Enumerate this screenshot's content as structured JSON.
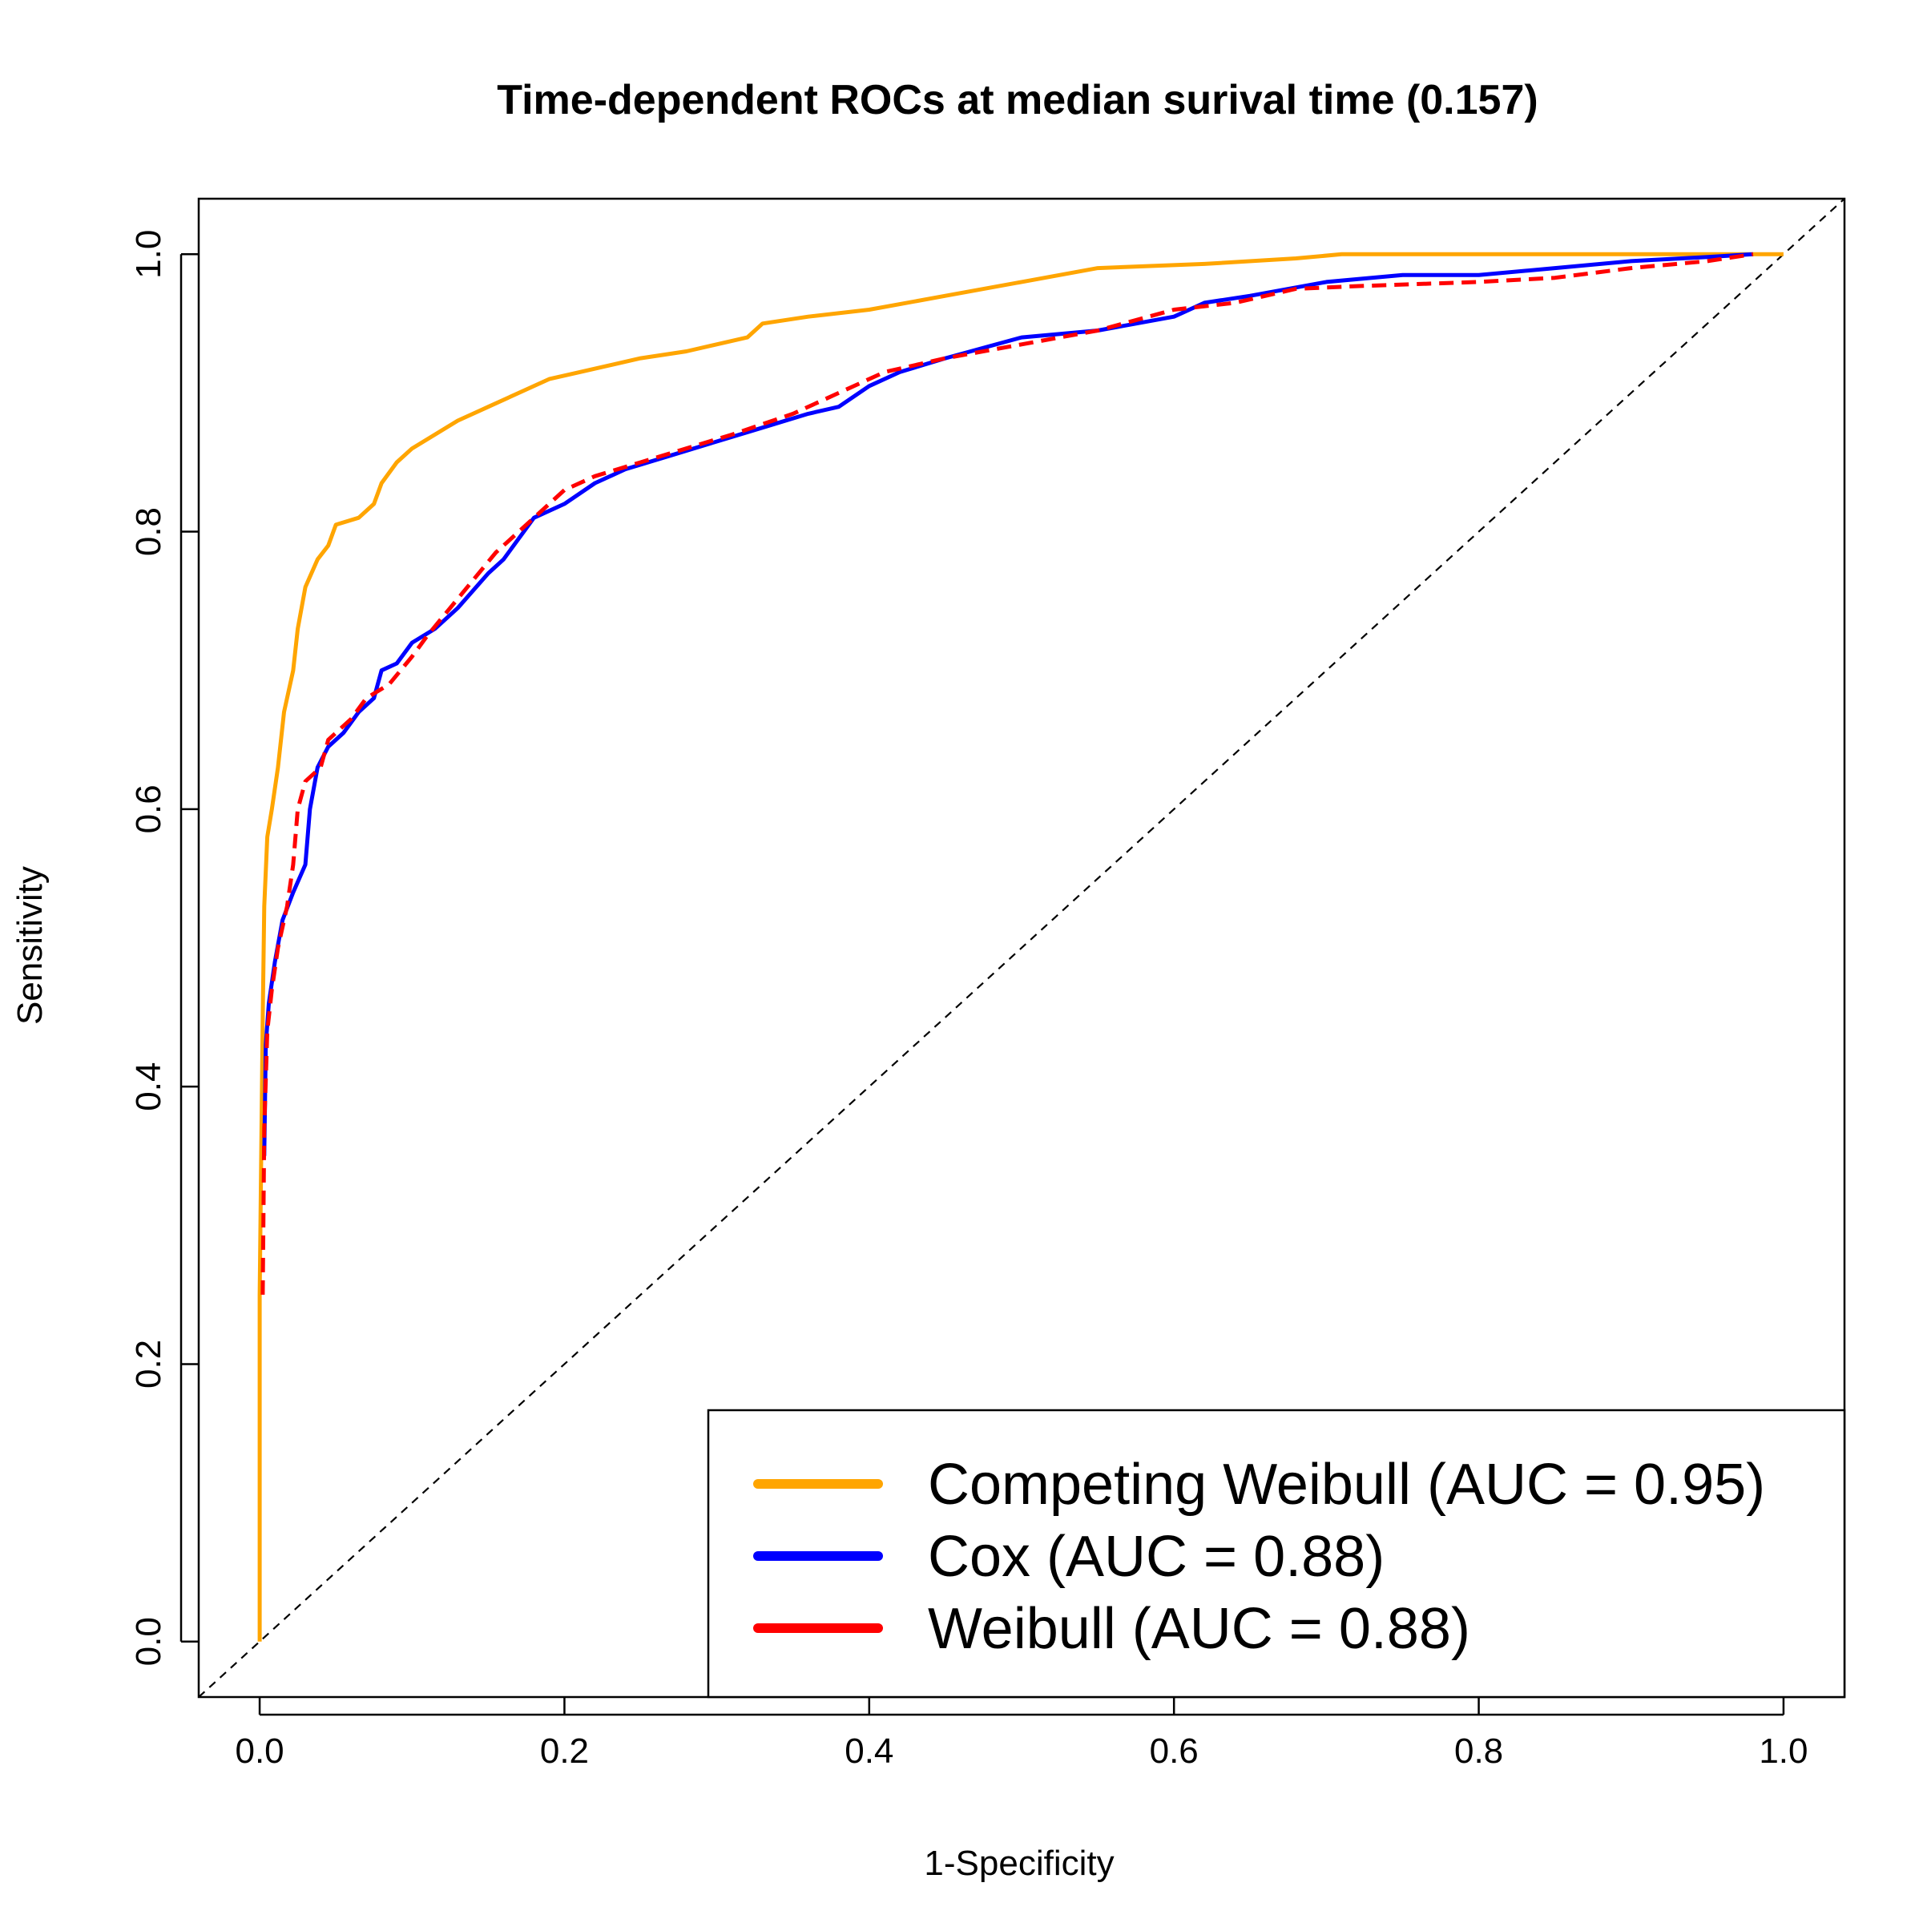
{
  "chart_data": {
    "type": "line",
    "title": "Time-dependent ROCs at median surival time (0.157)",
    "xlabel": "1-Specificity",
    "ylabel": "Sensitivity",
    "xlim": [
      -0.04,
      1.04
    ],
    "ylim": [
      -0.04,
      1.04
    ],
    "xticks": [
      "0.0",
      "0.2",
      "0.4",
      "0.6",
      "0.8",
      "1.0"
    ],
    "yticks": [
      "0.0",
      "0.2",
      "0.4",
      "0.6",
      "0.8",
      "1.0"
    ],
    "grid": false,
    "legend_position": "bottom-right",
    "legend": [
      {
        "label": "Competing Weibull (AUC = 0.95)",
        "color": "#ffa500"
      },
      {
        "label": "Cox (AUC = 0.88)",
        "color": "#0000ff"
      },
      {
        "label": "Weibull (AUC = 0.88)",
        "color": "#ff0000"
      }
    ],
    "reference_line": {
      "from": [
        0,
        0
      ],
      "to": [
        1,
        1
      ],
      "style": "dashed",
      "color": "#000000"
    },
    "series": [
      {
        "label": "Competing Weibull (AUC = 0.95)",
        "color": "#ffa500",
        "style": "solid",
        "points": [
          [
            0,
            0
          ],
          [
            0,
            0.25
          ],
          [
            0.002,
            0.45
          ],
          [
            0.003,
            0.53
          ],
          [
            0.005,
            0.58
          ],
          [
            0.008,
            0.6
          ],
          [
            0.012,
            0.63
          ],
          [
            0.016,
            0.67
          ],
          [
            0.022,
            0.7
          ],
          [
            0.025,
            0.73
          ],
          [
            0.03,
            0.76
          ],
          [
            0.038,
            0.78
          ],
          [
            0.045,
            0.79
          ],
          [
            0.05,
            0.805
          ],
          [
            0.065,
            0.81
          ],
          [
            0.075,
            0.82
          ],
          [
            0.08,
            0.835
          ],
          [
            0.09,
            0.85
          ],
          [
            0.1,
            0.86
          ],
          [
            0.115,
            0.87
          ],
          [
            0.13,
            0.88
          ],
          [
            0.15,
            0.89
          ],
          [
            0.17,
            0.9
          ],
          [
            0.19,
            0.91
          ],
          [
            0.21,
            0.915
          ],
          [
            0.25,
            0.925
          ],
          [
            0.28,
            0.93
          ],
          [
            0.32,
            0.94
          ],
          [
            0.33,
            0.95
          ],
          [
            0.36,
            0.955
          ],
          [
            0.4,
            0.96
          ],
          [
            0.45,
            0.97
          ],
          [
            0.5,
            0.98
          ],
          [
            0.55,
            0.99
          ],
          [
            0.62,
            0.993
          ],
          [
            0.68,
            0.997
          ],
          [
            0.71,
            1.0
          ],
          [
            1.0,
            1.0
          ]
        ]
      },
      {
        "label": "Cox (AUC = 0.88)",
        "color": "#0000ff",
        "style": "solid",
        "points": [
          [
            0.003,
            0.35
          ],
          [
            0.004,
            0.43
          ],
          [
            0.006,
            0.46
          ],
          [
            0.01,
            0.49
          ],
          [
            0.015,
            0.52
          ],
          [
            0.022,
            0.54
          ],
          [
            0.03,
            0.56
          ],
          [
            0.033,
            0.6
          ],
          [
            0.038,
            0.63
          ],
          [
            0.045,
            0.645
          ],
          [
            0.055,
            0.655
          ],
          [
            0.065,
            0.67
          ],
          [
            0.075,
            0.68
          ],
          [
            0.08,
            0.7
          ],
          [
            0.09,
            0.705
          ],
          [
            0.1,
            0.72
          ],
          [
            0.115,
            0.73
          ],
          [
            0.13,
            0.745
          ],
          [
            0.15,
            0.77
          ],
          [
            0.16,
            0.78
          ],
          [
            0.17,
            0.795
          ],
          [
            0.18,
            0.81
          ],
          [
            0.2,
            0.82
          ],
          [
            0.22,
            0.835
          ],
          [
            0.24,
            0.845
          ],
          [
            0.27,
            0.855
          ],
          [
            0.3,
            0.865
          ],
          [
            0.33,
            0.875
          ],
          [
            0.36,
            0.885
          ],
          [
            0.38,
            0.89
          ],
          [
            0.4,
            0.905
          ],
          [
            0.42,
            0.915
          ],
          [
            0.45,
            0.925
          ],
          [
            0.5,
            0.94
          ],
          [
            0.55,
            0.945
          ],
          [
            0.6,
            0.955
          ],
          [
            0.62,
            0.965
          ],
          [
            0.65,
            0.97
          ],
          [
            0.7,
            0.98
          ],
          [
            0.75,
            0.985
          ],
          [
            0.8,
            0.985
          ],
          [
            0.85,
            0.99
          ],
          [
            0.9,
            0.995
          ],
          [
            0.95,
            0.998
          ],
          [
            0.98,
            1.0
          ]
        ]
      },
      {
        "label": "Weibull (AUC = 0.88)",
        "color": "#ff0000",
        "style": "dashed",
        "points": [
          [
            0.002,
            0.25
          ],
          [
            0.003,
            0.37
          ],
          [
            0.005,
            0.44
          ],
          [
            0.008,
            0.47
          ],
          [
            0.012,
            0.5
          ],
          [
            0.018,
            0.53
          ],
          [
            0.022,
            0.56
          ],
          [
            0.025,
            0.6
          ],
          [
            0.03,
            0.62
          ],
          [
            0.04,
            0.63
          ],
          [
            0.045,
            0.65
          ],
          [
            0.06,
            0.665
          ],
          [
            0.07,
            0.68
          ],
          [
            0.085,
            0.69
          ],
          [
            0.1,
            0.71
          ],
          [
            0.11,
            0.725
          ],
          [
            0.125,
            0.745
          ],
          [
            0.14,
            0.765
          ],
          [
            0.155,
            0.785
          ],
          [
            0.17,
            0.8
          ],
          [
            0.185,
            0.815
          ],
          [
            0.2,
            0.83
          ],
          [
            0.22,
            0.84
          ],
          [
            0.25,
            0.85
          ],
          [
            0.28,
            0.86
          ],
          [
            0.31,
            0.87
          ],
          [
            0.35,
            0.885
          ],
          [
            0.38,
            0.9
          ],
          [
            0.41,
            0.915
          ],
          [
            0.45,
            0.925
          ],
          [
            0.5,
            0.935
          ],
          [
            0.55,
            0.945
          ],
          [
            0.6,
            0.96
          ],
          [
            0.64,
            0.965
          ],
          [
            0.68,
            0.975
          ],
          [
            0.72,
            0.977
          ],
          [
            0.8,
            0.98
          ],
          [
            0.85,
            0.983
          ],
          [
            0.9,
            0.99
          ],
          [
            0.95,
            0.995
          ],
          [
            0.98,
            1.0
          ]
        ]
      }
    ]
  }
}
